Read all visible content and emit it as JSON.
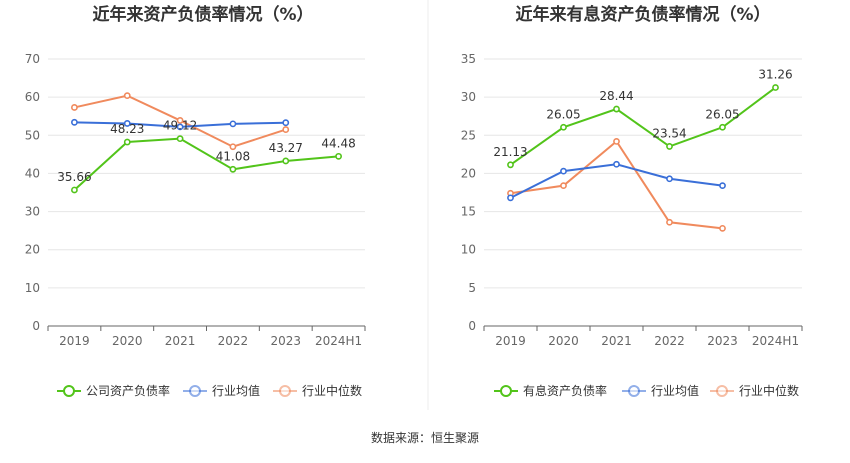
{
  "source": "数据来源：恒生聚源",
  "chart_data": [
    {
      "type": "line",
      "title": "近年来资产负债率情况（%）",
      "categories": [
        "2019",
        "2020",
        "2021",
        "2022",
        "2023",
        "2024H1"
      ],
      "ylim": [
        0,
        70
      ],
      "yticks": [
        0,
        10,
        20,
        30,
        40,
        50,
        60,
        70
      ],
      "grid": true,
      "legend": "bottom",
      "series": [
        {
          "name": "公司资产负债率",
          "color": "#52c41a",
          "values": [
            35.66,
            48.23,
            49.12,
            41.08,
            43.27,
            44.48
          ],
          "labels": true
        },
        {
          "name": "行业均值",
          "color": "#3a6fd8",
          "values": [
            53.4,
            53.1,
            52.2,
            53.0,
            53.3,
            null
          ],
          "labels": false
        },
        {
          "name": "行业中位数",
          "color": "#f08a5d",
          "values": [
            57.3,
            60.4,
            53.9,
            47.0,
            51.5,
            null
          ],
          "labels": false
        }
      ]
    },
    {
      "type": "line",
      "title": "近年来有息资产负债率情况（%）",
      "categories": [
        "2019",
        "2020",
        "2021",
        "2022",
        "2023",
        "2024H1"
      ],
      "ylim": [
        0,
        35
      ],
      "yticks": [
        0,
        5,
        10,
        15,
        20,
        25,
        30,
        35
      ],
      "grid": true,
      "legend": "bottom",
      "series": [
        {
          "name": "有息资产负债率",
          "color": "#52c41a",
          "values": [
            21.13,
            26.05,
            28.44,
            23.54,
            26.05,
            31.26
          ],
          "labels": true
        },
        {
          "name": "行业均值",
          "color": "#3a6fd8",
          "values": [
            16.8,
            20.3,
            21.2,
            19.3,
            18.4,
            null
          ],
          "labels": false
        },
        {
          "name": "行业中位数",
          "color": "#f08a5d",
          "values": [
            17.4,
            18.4,
            24.2,
            13.6,
            12.8,
            null
          ],
          "labels": false
        }
      ]
    }
  ]
}
